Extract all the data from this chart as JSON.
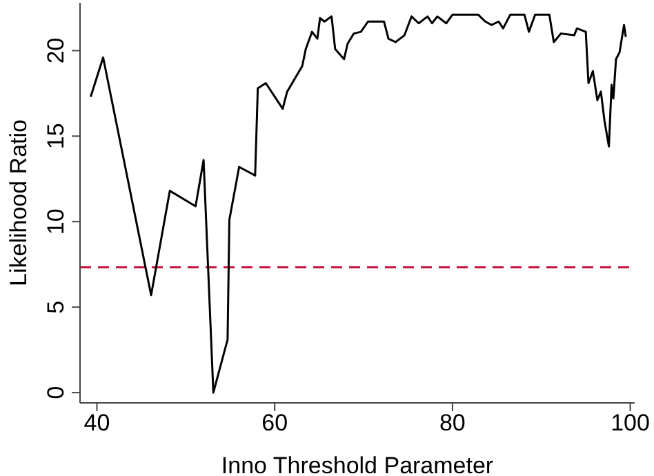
{
  "chart_data": {
    "type": "line",
    "xlabel": "Inno Threshold Parameter",
    "ylabel": "Likelihood Ratio",
    "xlim": [
      38.1,
      100.5
    ],
    "ylim": [
      -0.6,
      22.8
    ],
    "xticks": [
      40,
      60,
      80,
      100
    ],
    "yticks": [
      0,
      5,
      10,
      15,
      20
    ],
    "grid": false,
    "legend": false,
    "marker": "none",
    "line_style": "solid",
    "series": [
      {
        "color": "#000000",
        "x": [
          39.3,
          40.7,
          46.1,
          48.2,
          51.1,
          52.0,
          53.1,
          54.7,
          54.9,
          56.0,
          57.8,
          58.1,
          59.0,
          60.9,
          61.4,
          63.1,
          63.5,
          64.2,
          64.8,
          65.1,
          65.6,
          66.4,
          66.8,
          67.8,
          68.2,
          68.9,
          69.7,
          70.5,
          72.3,
          72.8,
          73.6,
          74.6,
          75.4,
          76.2,
          77.2,
          77.7,
          78.3,
          79.3,
          80.0,
          81.3,
          82.9,
          83.7,
          84.4,
          85.2,
          85.7,
          86.5,
          88.1,
          88.6,
          89.3,
          90.9,
          91.4,
          92.2,
          93.7,
          94.0,
          95.0,
          95.3,
          95.8,
          96.3,
          96.7,
          97.1,
          97.6,
          97.9,
          98.1,
          98.4,
          98.8,
          99.3,
          99.5
        ],
        "values": [
          17.3,
          19.6,
          5.7,
          11.8,
          10.9,
          13.6,
          0,
          3.1,
          10.1,
          13.2,
          12.7,
          17.8,
          18.1,
          16.6,
          17.6,
          19.1,
          20.1,
          21.1,
          20.7,
          21.9,
          21.7,
          22.0,
          20.1,
          19.5,
          20.4,
          21.0,
          21.1,
          21.7,
          21.7,
          20.7,
          20.5,
          20.9,
          22.0,
          21.6,
          22.0,
          21.6,
          22.0,
          21.6,
          22.1,
          22.1,
          22.1,
          21.7,
          21.5,
          21.7,
          21.3,
          22.1,
          22.1,
          21.1,
          22.1,
          22.1,
          20.5,
          21.0,
          20.9,
          21.3,
          21.1,
          18.1,
          18.8,
          17.1,
          17.6,
          15.9,
          14.4,
          18.0,
          17.2,
          19.5,
          19.9,
          21.5,
          20.8
        ]
      }
    ],
    "ref_lines": [
      {
        "axis": "y",
        "value": 7.33,
        "color": "#c8143c",
        "line_style": "dashed"
      }
    ]
  }
}
